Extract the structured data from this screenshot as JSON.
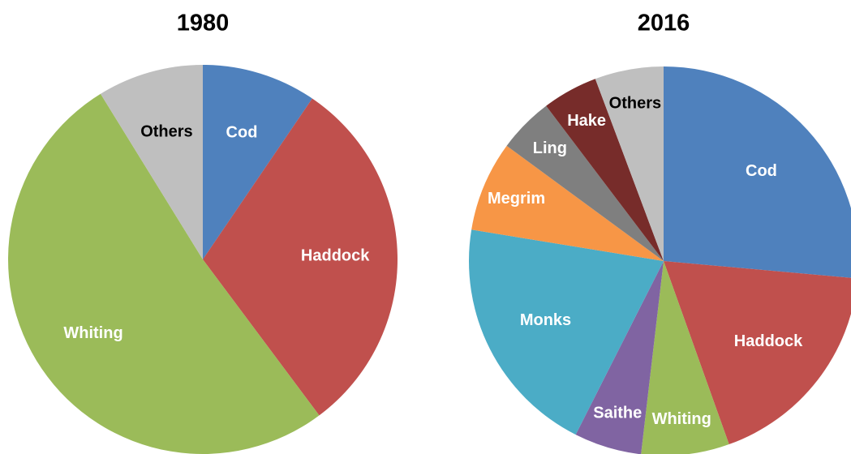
{
  "chart_data": [
    {
      "type": "pie",
      "title": "1980",
      "categories": [
        "Cod",
        "Haddock",
        "Whiting",
        "Others"
      ],
      "values": [
        9.5,
        30.3,
        51.4,
        8.8
      ],
      "colors": [
        "#4f81bd",
        "#c0504d",
        "#9bbb59",
        "#bfbfbf"
      ],
      "label_colors": [
        "#ffffff",
        "#ffffff",
        "#ffffff",
        "#000000"
      ]
    },
    {
      "type": "pie",
      "title": "2016",
      "categories": [
        "Cod",
        "Haddock",
        "Whiting",
        "Saithe",
        "Monks",
        "Megrim",
        "Ling",
        "Hake",
        "Others"
      ],
      "values": [
        26.4,
        18.1,
        7.3,
        5.6,
        20.1,
        7.5,
        4.6,
        4.6,
        5.7
      ],
      "colors": [
        "#4f81bd",
        "#c0504d",
        "#9bbb59",
        "#8064a2",
        "#4bacc6",
        "#f79646",
        "#7f7f7f",
        "#772c2a",
        "#bfbfbf"
      ],
      "label_colors": [
        "#ffffff",
        "#ffffff",
        "#ffffff",
        "#ffffff",
        "#ffffff",
        "#ffffff",
        "#ffffff",
        "#ffffff",
        "#000000"
      ]
    }
  ]
}
